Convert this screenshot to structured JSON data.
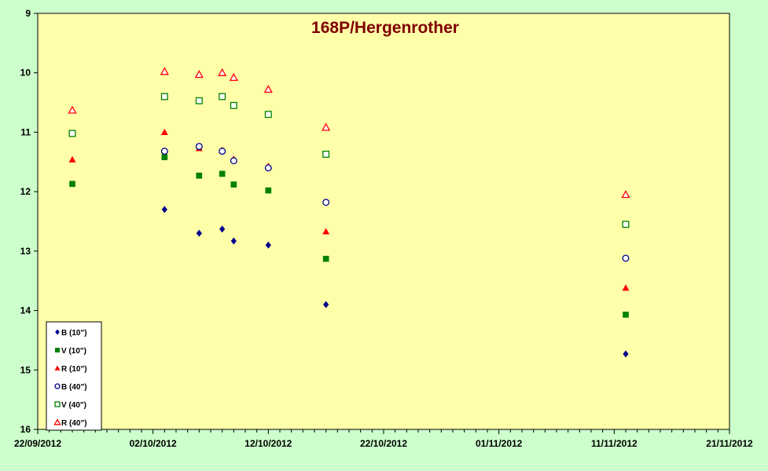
{
  "chart_data": {
    "type": "scatter",
    "title": "168P/Hergenrother",
    "xlabel": "",
    "ylabel": "",
    "x_tick_labels": [
      "22/09/2012",
      "02/10/2012",
      "12/10/2012",
      "22/10/2012",
      "01/11/2012",
      "11/11/2012",
      "21/11/2012"
    ],
    "xlim": [
      "2012-09-22",
      "2012-11-21"
    ],
    "ylim": [
      9,
      16
    ],
    "y_reversed": true,
    "y_ticks": [
      9,
      10,
      11,
      12,
      13,
      14,
      15,
      16
    ],
    "legend_position": "bottom-left",
    "grid": false,
    "plot_background": "#ffffaa",
    "page_background": "#ccffcc",
    "title_color": "#800000",
    "series": [
      {
        "name": "B (10\")",
        "marker": "diamond",
        "color": "#00008b",
        "filled": true,
        "points": [
          {
            "x": "2012-10-03",
            "y": 12.3
          },
          {
            "x": "2012-10-06",
            "y": 12.7
          },
          {
            "x": "2012-10-08",
            "y": 12.63
          },
          {
            "x": "2012-10-09",
            "y": 12.83
          },
          {
            "x": "2012-10-12",
            "y": 12.9
          },
          {
            "x": "2012-10-17",
            "y": 13.9
          },
          {
            "x": "2012-11-12",
            "y": 14.73
          }
        ]
      },
      {
        "name": "V (10\")",
        "marker": "square",
        "color": "#008000",
        "filled": true,
        "points": [
          {
            "x": "2012-09-25",
            "y": 11.87
          },
          {
            "x": "2012-10-03",
            "y": 11.42
          },
          {
            "x": "2012-10-06",
            "y": 11.73
          },
          {
            "x": "2012-10-08",
            "y": 11.7
          },
          {
            "x": "2012-10-09",
            "y": 11.88
          },
          {
            "x": "2012-10-12",
            "y": 11.98
          },
          {
            "x": "2012-10-17",
            "y": 13.13
          },
          {
            "x": "2012-11-12",
            "y": 14.07
          }
        ]
      },
      {
        "name": "R (10\")",
        "marker": "triangle",
        "color": "#ff0000",
        "filled": true,
        "points": [
          {
            "x": "2012-09-25",
            "y": 11.46
          },
          {
            "x": "2012-10-03",
            "y": 11.0
          },
          {
            "x": "2012-10-06",
            "y": 11.27
          },
          {
            "x": "2012-10-08",
            "y": 11.3
          },
          {
            "x": "2012-10-09",
            "y": 11.45
          },
          {
            "x": "2012-10-12",
            "y": 11.57
          },
          {
            "x": "2012-10-17",
            "y": 12.67
          },
          {
            "x": "2012-11-12",
            "y": 13.62
          }
        ]
      },
      {
        "name": "B (40\")",
        "marker": "circle",
        "color": "#00008b",
        "filled": false,
        "points": [
          {
            "x": "2012-10-03",
            "y": 11.32
          },
          {
            "x": "2012-10-06",
            "y": 11.24
          },
          {
            "x": "2012-10-08",
            "y": 11.32
          },
          {
            "x": "2012-10-09",
            "y": 11.48
          },
          {
            "x": "2012-10-12",
            "y": 11.6
          },
          {
            "x": "2012-10-17",
            "y": 12.18
          },
          {
            "x": "2012-11-12",
            "y": 13.12
          }
        ]
      },
      {
        "name": "V (40\")",
        "marker": "square",
        "color": "#008000",
        "filled": false,
        "points": [
          {
            "x": "2012-09-25",
            "y": 11.02
          },
          {
            "x": "2012-10-03",
            "y": 10.4
          },
          {
            "x": "2012-10-06",
            "y": 10.47
          },
          {
            "x": "2012-10-08",
            "y": 10.4
          },
          {
            "x": "2012-10-09",
            "y": 10.55
          },
          {
            "x": "2012-10-12",
            "y": 10.7
          },
          {
            "x": "2012-10-17",
            "y": 11.37
          },
          {
            "x": "2012-11-12",
            "y": 12.55
          }
        ]
      },
      {
        "name": "R (40\")",
        "marker": "triangle",
        "color": "#ff0000",
        "filled": false,
        "points": [
          {
            "x": "2012-09-25",
            "y": 10.63
          },
          {
            "x": "2012-10-03",
            "y": 9.98
          },
          {
            "x": "2012-10-06",
            "y": 10.03
          },
          {
            "x": "2012-10-08",
            "y": 10.0
          },
          {
            "x": "2012-10-09",
            "y": 10.08
          },
          {
            "x": "2012-10-12",
            "y": 10.28
          },
          {
            "x": "2012-10-17",
            "y": 10.92
          },
          {
            "x": "2012-11-12",
            "y": 12.05
          }
        ]
      }
    ]
  }
}
